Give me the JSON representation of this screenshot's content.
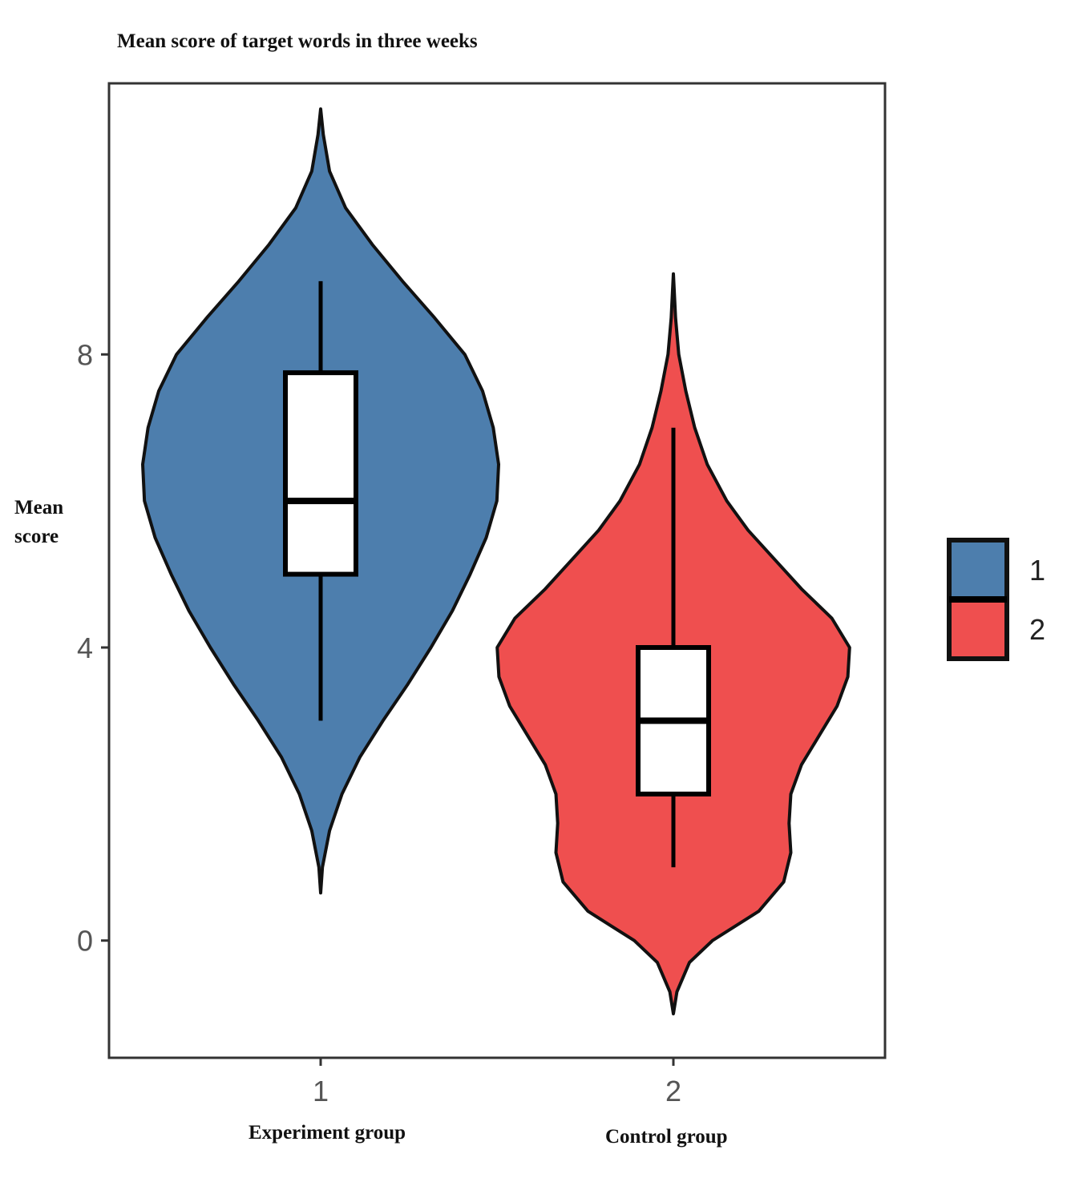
{
  "chart_data": {
    "type": "violin",
    "title": "Mean score of target words in three weeks",
    "ylabel_lines": [
      "Mean",
      "score"
    ],
    "xlabel_left": "Experiment group",
    "xlabel_right": "Control group",
    "ylim": [
      -1.6,
      11.7
    ],
    "xlim": [
      0.4,
      2.6
    ],
    "yticks": [
      0,
      4,
      8
    ],
    "categories": [
      "1",
      "2"
    ],
    "grid": false,
    "legend_position": "right",
    "legend": [
      {
        "label": "1",
        "color": "#4D7EAD"
      },
      {
        "label": "2",
        "color": "#EF4F4F"
      }
    ],
    "series": [
      {
        "category": "1",
        "color": "#4D7EAD",
        "box": {
          "min": 3.0,
          "q1": 5.0,
          "median": 6.0,
          "q3": 7.75,
          "max": 9.0
        },
        "violin_range": [
          0.65,
          11.35
        ],
        "density_profile": [
          [
            0.65,
            0.0
          ],
          [
            1.0,
            0.01
          ],
          [
            1.5,
            0.05
          ],
          [
            2.0,
            0.12
          ],
          [
            2.5,
            0.22
          ],
          [
            3.0,
            0.35
          ],
          [
            3.5,
            0.49
          ],
          [
            4.0,
            0.62
          ],
          [
            4.5,
            0.74
          ],
          [
            5.0,
            0.84
          ],
          [
            5.5,
            0.93
          ],
          [
            6.0,
            0.99
          ],
          [
            6.5,
            1.0
          ],
          [
            7.0,
            0.97
          ],
          [
            7.5,
            0.91
          ],
          [
            8.0,
            0.81
          ],
          [
            8.5,
            0.64
          ],
          [
            9.0,
            0.46
          ],
          [
            9.5,
            0.29
          ],
          [
            10.0,
            0.14
          ],
          [
            10.5,
            0.05
          ],
          [
            11.0,
            0.015
          ],
          [
            11.35,
            0.0
          ]
        ]
      },
      {
        "category": "2",
        "color": "#EF4F4F",
        "box": {
          "min": 1.0,
          "q1": 2.0,
          "median": 3.0,
          "q3": 4.0,
          "max": 7.0
        },
        "violin_range": [
          -1.0,
          9.1
        ],
        "density_profile": [
          [
            -1.0,
            0.0
          ],
          [
            -0.7,
            0.02
          ],
          [
            -0.3,
            0.09
          ],
          [
            0.0,
            0.22
          ],
          [
            0.4,
            0.48
          ],
          [
            0.8,
            0.62
          ],
          [
            1.2,
            0.66
          ],
          [
            1.6,
            0.65
          ],
          [
            2.0,
            0.66
          ],
          [
            2.4,
            0.72
          ],
          [
            2.8,
            0.82
          ],
          [
            3.2,
            0.92
          ],
          [
            3.6,
            0.98
          ],
          [
            4.0,
            0.99
          ],
          [
            4.4,
            0.89
          ],
          [
            4.8,
            0.72
          ],
          [
            5.2,
            0.57
          ],
          [
            5.6,
            0.42
          ],
          [
            6.0,
            0.3
          ],
          [
            6.5,
            0.19
          ],
          [
            7.0,
            0.12
          ],
          [
            7.5,
            0.07
          ],
          [
            8.0,
            0.03
          ],
          [
            8.5,
            0.012
          ],
          [
            9.1,
            0.0
          ]
        ]
      }
    ]
  }
}
